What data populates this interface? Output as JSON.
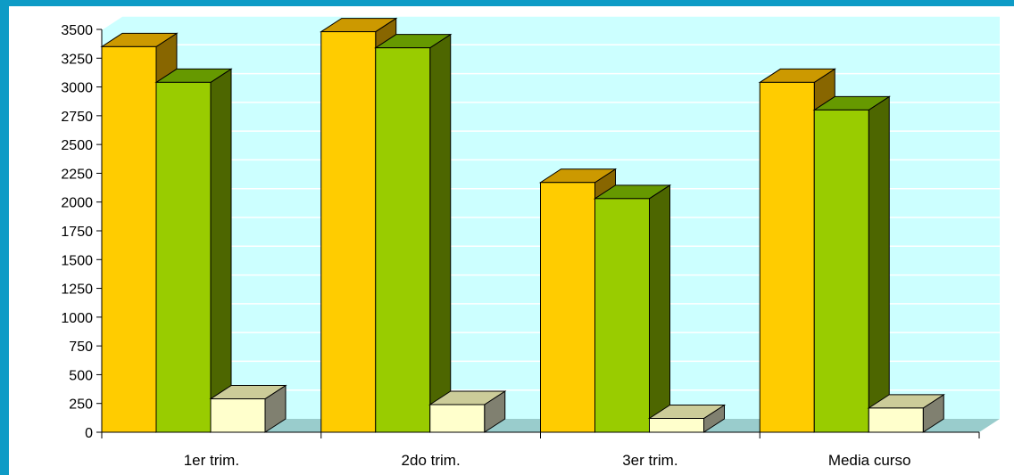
{
  "chart_data": {
    "type": "bar",
    "categories": [
      "1er trim.",
      "2do trim.",
      "3er trim.",
      "Media curso"
    ],
    "series": [
      {
        "values": [
          3350,
          3480,
          2170,
          3040
        ]
      },
      {
        "values": [
          3040,
          3340,
          2030,
          2800
        ]
      },
      {
        "values": [
          290,
          240,
          120,
          210
        ]
      }
    ],
    "title": "",
    "xlabel": "",
    "ylabel": "",
    "ylim": [
      0,
      3500
    ],
    "yticks": [
      0,
      250,
      500,
      750,
      1000,
      1250,
      1500,
      1750,
      2000,
      2250,
      2500,
      2750,
      3000,
      3250,
      3500
    ],
    "grid": true,
    "legend": "none",
    "colors": {
      "series_front": [
        "#ffcc00",
        "#99cc00",
        "#ffffcc"
      ],
      "series_top": [
        "#cc9900",
        "#669900",
        "#cccc99"
      ],
      "series_side": [
        "#886600",
        "#4d6600",
        "#808070"
      ],
      "wall": "#ccffff",
      "floor": "#99cccc",
      "grid": "#ffffff",
      "frame": "#0e9bc6"
    }
  }
}
